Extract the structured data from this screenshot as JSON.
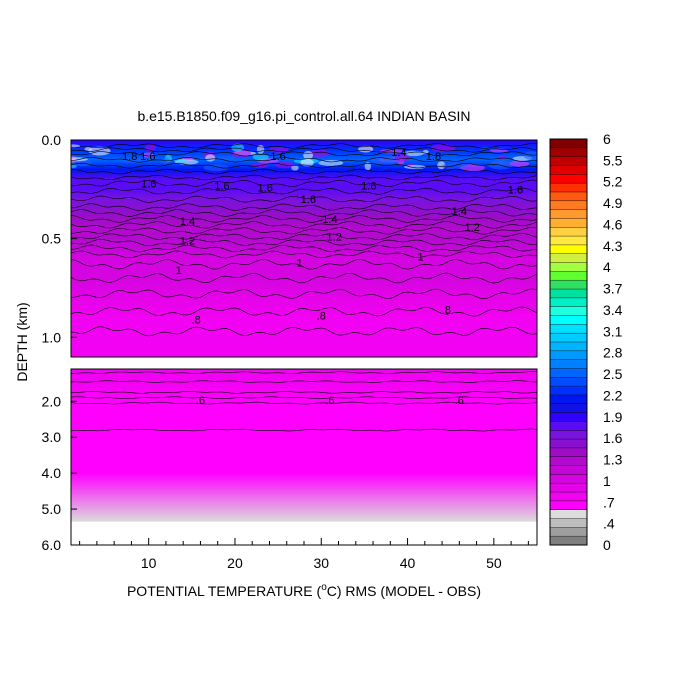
{
  "chart_data": {
    "type": "heatmap",
    "title": "b.e15.B1850.f09_g16.pi_control.all.64 INDIAN BASIN",
    "xlabel_parts": [
      "POTENTIAL TEMPERATURE (",
      "o",
      "C) RMS (MODEL - OBS)"
    ],
    "ylabel": "DEPTH (km)",
    "x_range": [
      1,
      55
    ],
    "x_ticks": [
      "10",
      "20",
      "30",
      "40",
      "50"
    ],
    "top_panel": {
      "depth_range_km": [
        0.0,
        1.1
      ],
      "y_ticks": [
        "0.0",
        "0.5",
        "1.0"
      ]
    },
    "bottom_panel": {
      "depth_range_km": [
        1.1,
        6.0
      ],
      "y_ticks": [
        "2.0",
        "3.0",
        "4.0",
        "5.0",
        "6.0"
      ],
      "data_bottom_km": 5.35
    },
    "depth_profile": [
      {
        "depth": 0.0,
        "value": 1.9
      },
      {
        "depth": 0.05,
        "value": 2.3
      },
      {
        "depth": 0.1,
        "value": 2.6
      },
      {
        "depth": 0.15,
        "value": 2.1
      },
      {
        "depth": 0.2,
        "value": 1.8
      },
      {
        "depth": 0.25,
        "value": 1.7
      },
      {
        "depth": 0.3,
        "value": 1.6
      },
      {
        "depth": 0.35,
        "value": 1.5
      },
      {
        "depth": 0.4,
        "value": 1.4
      },
      {
        "depth": 0.45,
        "value": 1.3
      },
      {
        "depth": 0.5,
        "value": 1.2
      },
      {
        "depth": 0.55,
        "value": 1.1
      },
      {
        "depth": 0.6,
        "value": 1.0
      },
      {
        "depth": 0.7,
        "value": 0.93
      },
      {
        "depth": 0.8,
        "value": 0.83
      },
      {
        "depth": 0.9,
        "value": 0.78
      },
      {
        "depth": 1.0,
        "value": 0.74
      },
      {
        "depth": 1.1,
        "value": 0.72
      },
      {
        "depth": 1.5,
        "value": 0.68
      },
      {
        "depth": 2.0,
        "value": 0.62
      },
      {
        "depth": 2.8,
        "value": 0.58
      },
      {
        "depth": 4.0,
        "value": 0.54
      },
      {
        "depth": 5.35,
        "value": 0.52
      }
    ],
    "contour_labels": [
      {
        "text": "1.8",
        "x": 7.8,
        "depth": 0.08
      },
      {
        "text": "1.6",
        "x": 9.9,
        "depth": 0.08
      },
      {
        "text": "1.6",
        "x": 25.0,
        "depth": 0.08
      },
      {
        "text": "1.4",
        "x": 39.0,
        "depth": 0.06
      },
      {
        "text": "1.8",
        "x": 43.0,
        "depth": 0.08
      },
      {
        "text": "1.6",
        "x": 10.0,
        "depth": 0.22
      },
      {
        "text": "1.6",
        "x": 18.5,
        "depth": 0.23
      },
      {
        "text": "1.6",
        "x": 23.5,
        "depth": 0.24
      },
      {
        "text": "1.6",
        "x": 28.5,
        "depth": 0.3
      },
      {
        "text": "1.6",
        "x": 35.5,
        "depth": 0.23
      },
      {
        "text": "1.6",
        "x": 52.5,
        "depth": 0.25
      },
      {
        "text": "1.4",
        "x": 14.5,
        "depth": 0.41
      },
      {
        "text": "1.4",
        "x": 31.0,
        "depth": 0.4
      },
      {
        "text": "1.4",
        "x": 46.0,
        "depth": 0.36
      },
      {
        "text": "1.2",
        "x": 14.5,
        "depth": 0.51
      },
      {
        "text": "1.2",
        "x": 31.5,
        "depth": 0.49
      },
      {
        "text": "1.2",
        "x": 47.5,
        "depth": 0.44
      },
      {
        "text": "1",
        "x": 13.5,
        "depth": 0.66
      },
      {
        "text": "1",
        "x": 27.5,
        "depth": 0.62
      },
      {
        "text": "1",
        "x": 41.5,
        "depth": 0.59
      },
      {
        "text": ".8",
        "x": 15.5,
        "depth": 0.91
      },
      {
        "text": ".8",
        "x": 30.0,
        "depth": 0.89
      },
      {
        "text": ".8",
        "x": 44.5,
        "depth": 0.86
      },
      {
        "text": ".6",
        "x": 16.0,
        "depth": 1.97
      },
      {
        "text": ".6",
        "x": 31.0,
        "depth": 1.97
      },
      {
        "text": ".6",
        "x": 46.0,
        "depth": 1.97
      }
    ],
    "colorbar": {
      "range": [
        0,
        6
      ],
      "labels": [
        "6",
        "5.5",
        "5.2",
        "4.9",
        "4.6",
        "4.3",
        "4",
        "3.7",
        "3.4",
        "3.1",
        "2.8",
        "2.5",
        "2.2",
        "1.9",
        "1.6",
        "1.3",
        "1",
        ".7",
        ".4",
        "0"
      ],
      "colors": [
        "#7f7f7f",
        "#9e9e9e",
        "#bebebe",
        "#dcdcdc",
        "#ff00ff",
        "#f202f2",
        "#e403e8",
        "#d405e0",
        "#c407d8",
        "#b40ad0",
        "#a00cc8",
        "#8a10d0",
        "#7a12e0",
        "#5a0cf4",
        "#3200ff",
        "#1212e8",
        "#0016f0",
        "#0030ff",
        "#004cff",
        "#0066ff",
        "#0080ff",
        "#009aff",
        "#00b4ff",
        "#00ccff",
        "#00e0ff",
        "#00ffff",
        "#20ffe0",
        "#00f0c8",
        "#00e0a0",
        "#30e060",
        "#60ff30",
        "#a0ff40",
        "#d0f040",
        "#ffff00",
        "#ffe840",
        "#ffd040",
        "#ffb030",
        "#ff9a30",
        "#ff7a20",
        "#ff5a10",
        "#ff3000",
        "#ff0000",
        "#e00000",
        "#c00000",
        "#a00000",
        "#800000"
      ]
    }
  }
}
